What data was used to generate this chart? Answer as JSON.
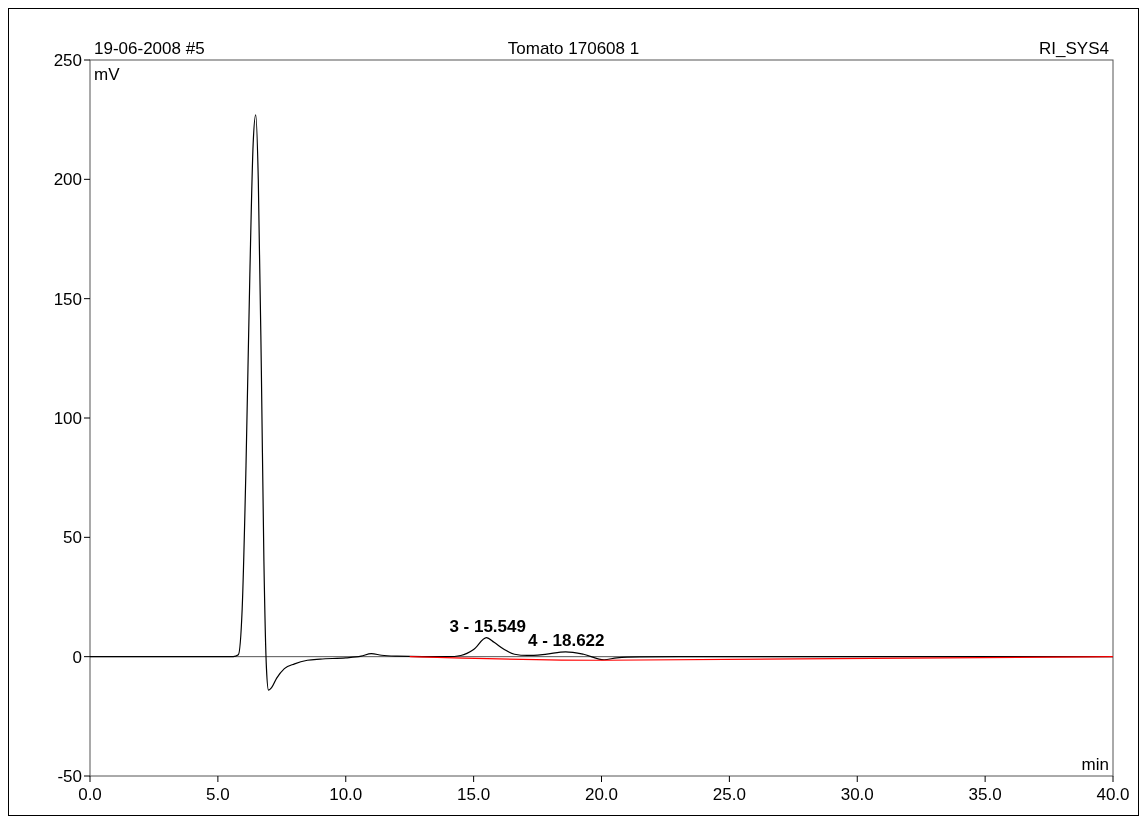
{
  "chart_data": {
    "type": "line",
    "title": "Tomato 170608 1",
    "xlabel": "min",
    "ylabel": "mV",
    "annotations": [
      "19-06-2008 #5",
      "RI_SYS4",
      {
        "text": "3 - 15.549",
        "x": 15.549,
        "y": 8
      },
      {
        "text": "4 - 18.622",
        "x": 18.622,
        "y": 2
      }
    ],
    "xlim": [
      0,
      40
    ],
    "ylim": [
      -50,
      250
    ],
    "xticks": [
      {
        "value": 0,
        "label": "0.0"
      },
      {
        "value": 5,
        "label": "5.0"
      },
      {
        "value": 10,
        "label": "10.0"
      },
      {
        "value": 15,
        "label": "15.0"
      },
      {
        "value": 20,
        "label": "20.0"
      },
      {
        "value": 25,
        "label": "25.0"
      },
      {
        "value": 30,
        "label": "30.0"
      },
      {
        "value": 35,
        "label": "35.0"
      },
      {
        "value": 40,
        "label": "40.0"
      }
    ],
    "yticks": [
      -50,
      0,
      50,
      100,
      150,
      200,
      250
    ],
    "ref_lines": [
      {
        "axis": "y",
        "value": 0,
        "color": "#555555"
      }
    ],
    "marker": "none",
    "line_style": "solid",
    "series": [
      {
        "color": "#000000",
        "x": [
          0,
          5.6,
          5.8,
          5.95,
          6.1,
          6.25,
          6.38,
          6.48,
          6.58,
          6.7,
          6.8,
          6.9,
          6.98,
          7.1,
          7.3,
          7.6,
          8.0,
          8.5,
          9.0,
          10.0,
          10.6,
          11.0,
          11.4,
          12.0,
          13.0,
          14.0,
          14.5,
          15.0,
          15.5,
          15.8,
          16.2,
          16.6,
          17.1,
          17.8,
          18.6,
          19.3,
          20.1,
          20.6,
          21.5,
          23,
          30,
          35,
          40
        ],
        "values": [
          0,
          0,
          0.8,
          20,
          80,
          160,
          215,
          227,
          200,
          120,
          40,
          -5,
          -14,
          -13,
          -9,
          -5,
          -3,
          -1.5,
          -1,
          -0.5,
          0.2,
          1.3,
          0.6,
          0.2,
          0,
          0,
          0.5,
          3,
          8,
          6,
          3,
          1,
          0.5,
          1,
          2,
          1,
          -1.3,
          -0.5,
          -0.1,
          0,
          0,
          0,
          0
        ]
      },
      {
        "color": "#ff0000",
        "x": [
          12.5,
          20.1,
          40
        ],
        "values": [
          0,
          -1.5,
          0
        ]
      }
    ]
  }
}
